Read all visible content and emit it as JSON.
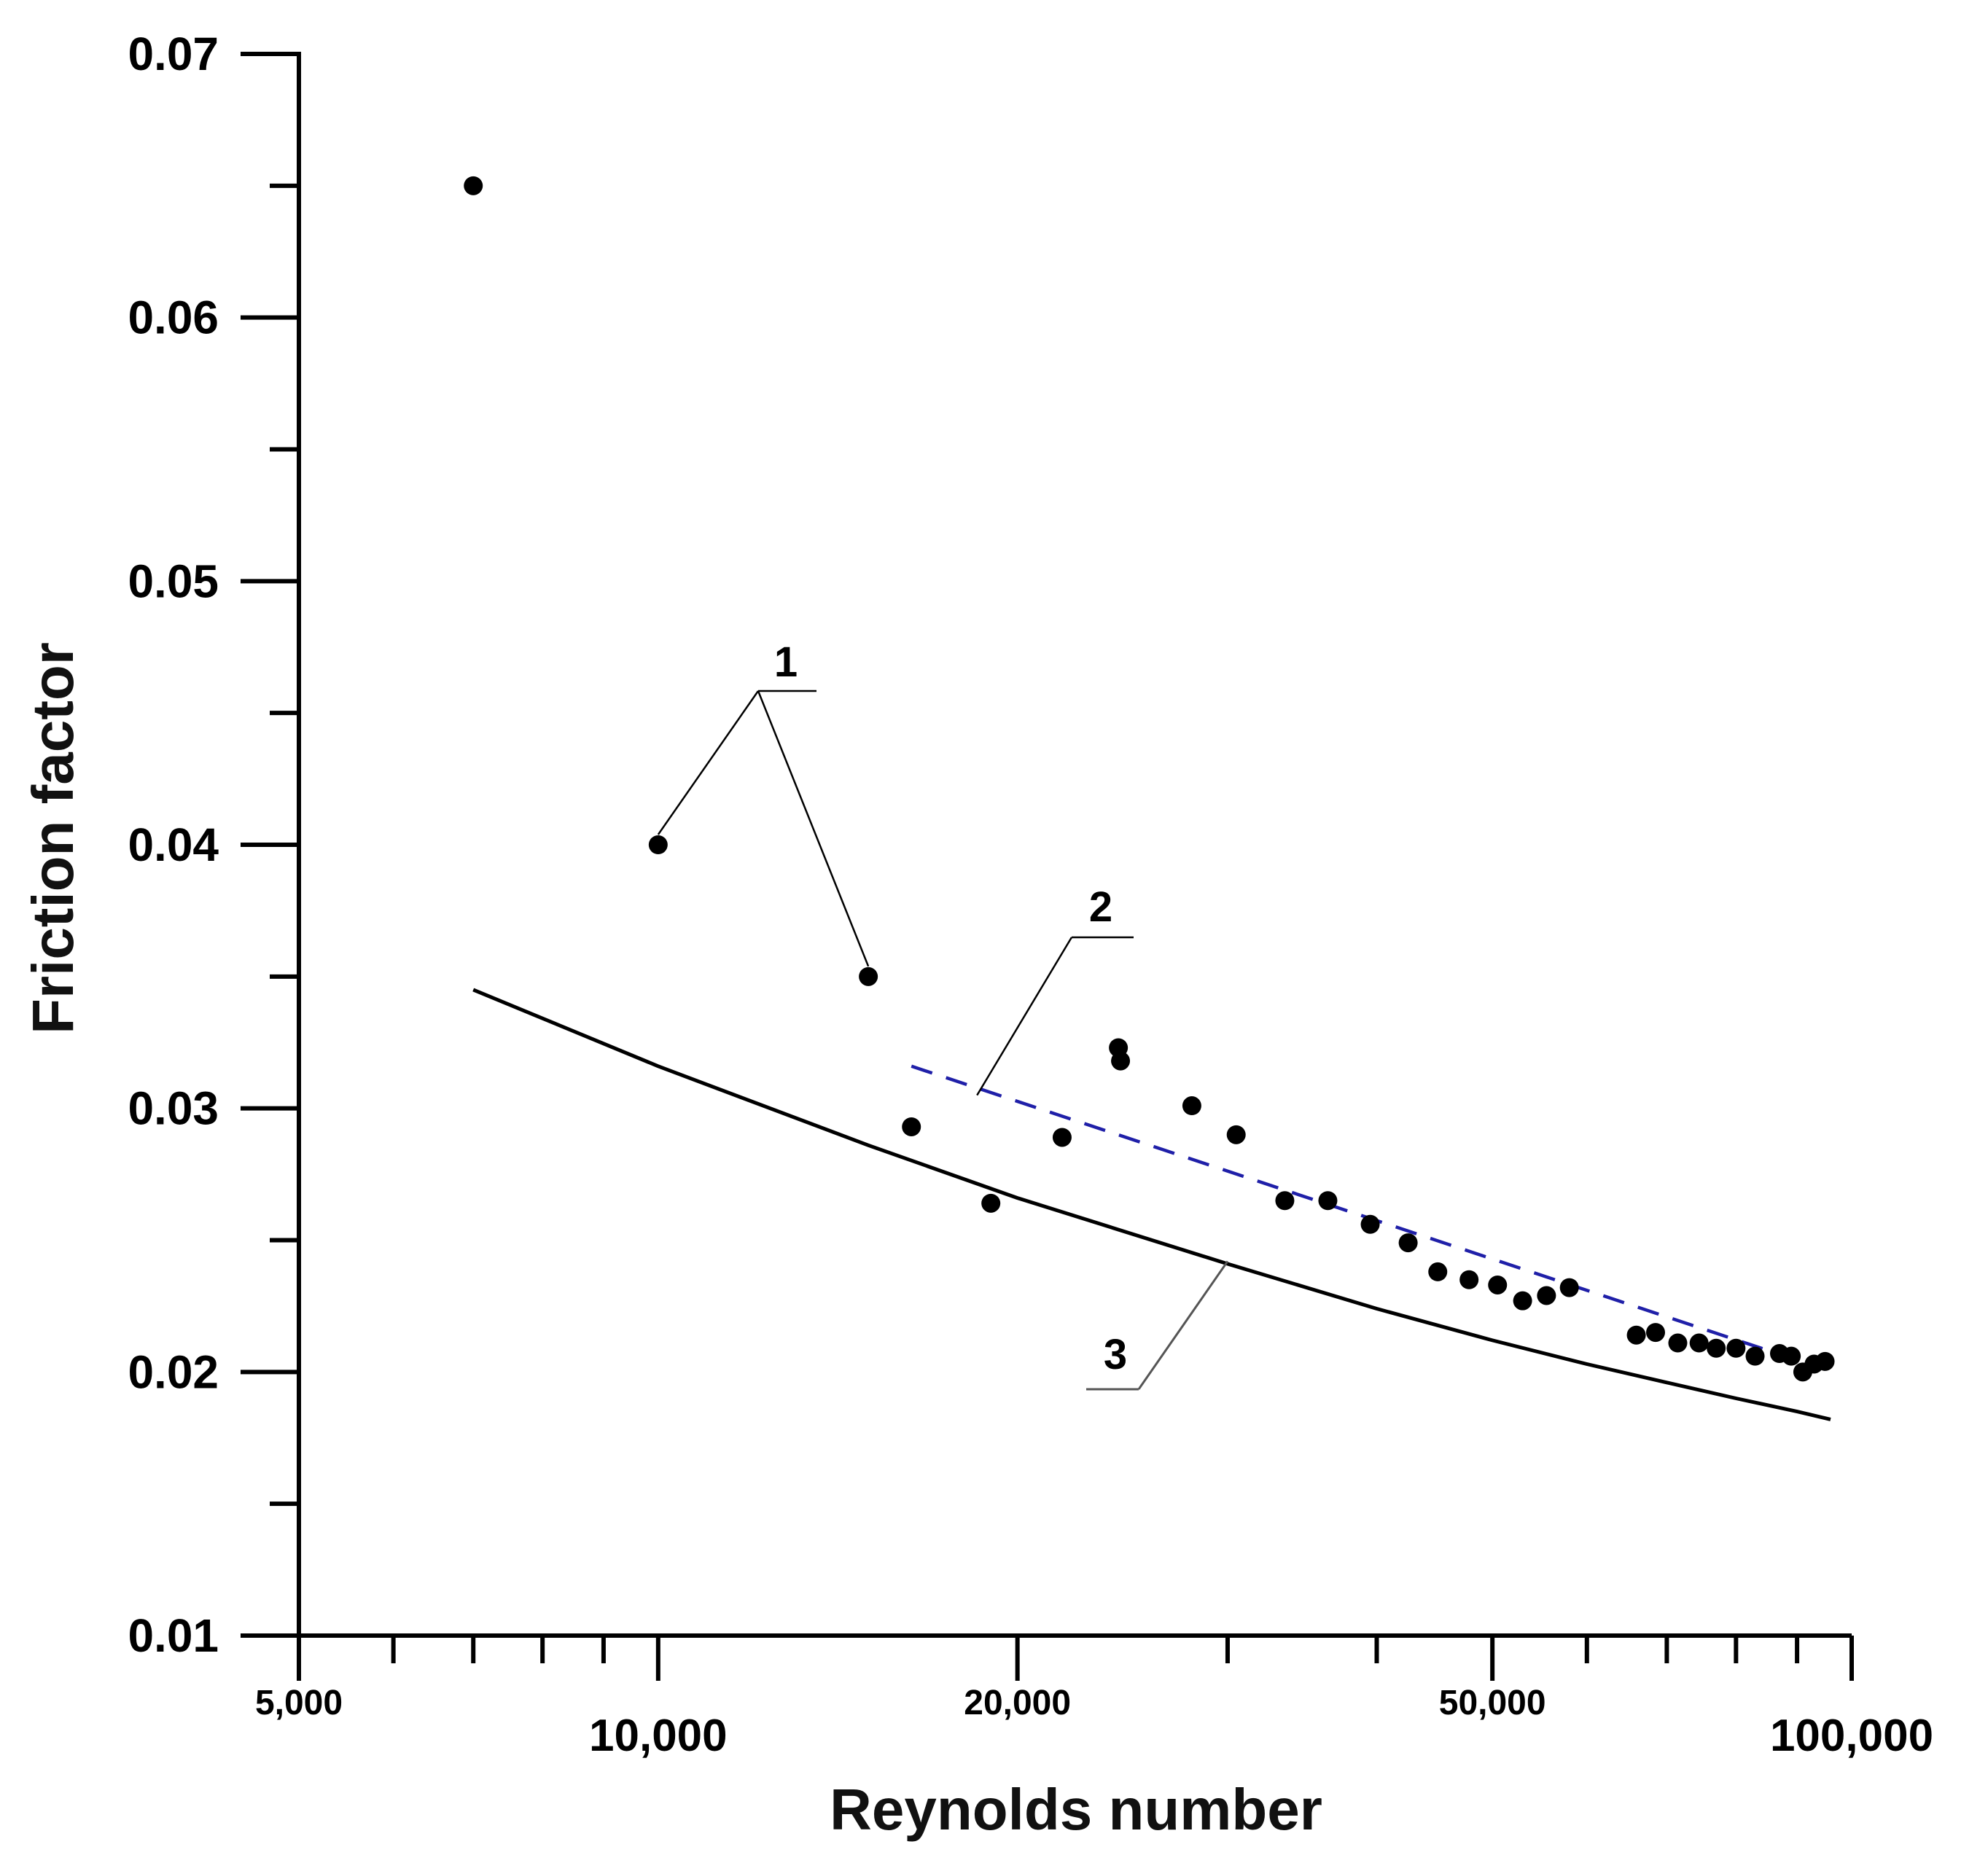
{
  "chart_data": {
    "type": "scatter",
    "title": "",
    "xlabel": "Reynolds number",
    "ylabel": "Friction factor",
    "xscale": "log",
    "xlim": [
      5000,
      100000
    ],
    "ylim": [
      0.01,
      0.07
    ],
    "grid": false,
    "x_ticks": [
      {
        "value": 5000,
        "label": "5,000"
      },
      {
        "value": 10000,
        "label": "10,000"
      },
      {
        "value": 20000,
        "label": "20,000"
      },
      {
        "value": 50000,
        "label": "50,000"
      },
      {
        "value": 100000,
        "label": "100,000"
      }
    ],
    "x_minor_ticks": [
      6000,
      7000,
      8000,
      9000,
      30000,
      40000,
      60000,
      70000,
      80000,
      90000
    ],
    "y_ticks": [
      {
        "value": 0.01,
        "label": "0.01"
      },
      {
        "value": 0.02,
        "label": "0.02"
      },
      {
        "value": 0.03,
        "label": "0.03"
      },
      {
        "value": 0.04,
        "label": "0.04"
      },
      {
        "value": 0.05,
        "label": "0.05"
      },
      {
        "value": 0.06,
        "label": "0.06"
      },
      {
        "value": 0.07,
        "label": "0.07"
      }
    ],
    "y_minor_ticks": [
      0.015,
      0.025,
      0.035,
      0.045,
      0.055,
      0.065
    ],
    "series": [
      {
        "name": "1",
        "type": "scatter",
        "color": "#000000",
        "x": [
          7000,
          10000,
          15000,
          16300,
          19000,
          21800,
          24300,
          24400,
          28000,
          30500,
          33500,
          36400,
          39500,
          42500,
          45000,
          47800,
          50500,
          53000,
          55500,
          58000,
          66000,
          68500,
          71500,
          74500,
          77000,
          80000,
          83000,
          87000,
          89000,
          91000,
          93000,
          95000
        ],
        "y": [
          0.065,
          0.04,
          0.035,
          0.0293,
          0.0264,
          0.0289,
          0.0323,
          0.0318,
          0.0301,
          0.029,
          0.0265,
          0.0265,
          0.0256,
          0.0249,
          0.0238,
          0.0235,
          0.0233,
          0.0227,
          0.0229,
          0.0232,
          0.0214,
          0.0215,
          0.0211,
          0.0211,
          0.0209,
          0.0209,
          0.0206,
          0.0207,
          0.0206,
          0.02,
          0.0203,
          0.0204
        ]
      },
      {
        "name": "2",
        "type": "line",
        "style": "dashed",
        "color": "#1f1fa8",
        "x": [
          16300,
          95000
        ],
        "y": [
          0.0316,
          0.0201
        ]
      },
      {
        "name": "3",
        "type": "line",
        "style": "solid",
        "color": "#000000",
        "x": [
          7000,
          10000,
          15000,
          20000,
          30000,
          40000,
          50000,
          60000,
          70000,
          80000,
          90000,
          96000
        ],
        "y": [
          0.0345,
          0.0316,
          0.0286,
          0.0266,
          0.0241,
          0.0224,
          0.0212,
          0.0203,
          0.0196,
          0.019,
          0.0185,
          0.0182
        ]
      }
    ],
    "annotations": [
      {
        "label": "1",
        "targets": [
          [
            10000,
            0.04
          ],
          [
            15000,
            0.035
          ]
        ]
      },
      {
        "label": "2",
        "target": [
          18500,
          0.0305
        ]
      },
      {
        "label": "3",
        "target": [
          30000,
          0.0242
        ]
      }
    ]
  }
}
